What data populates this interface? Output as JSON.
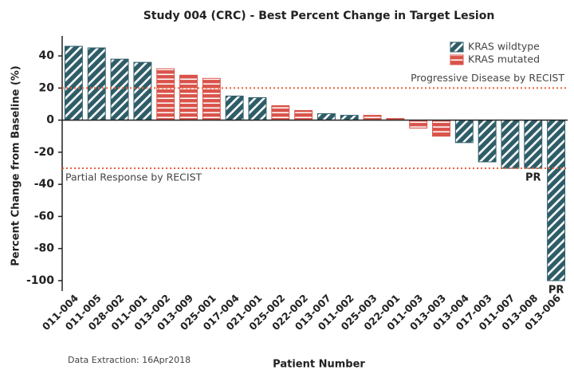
{
  "chart_data": {
    "type": "bar",
    "title": "Study 004 (CRC) - Best Percent Change in Target Lesion",
    "x_label": "Patient Number",
    "y_label": "Percent Change from Baseline (%)",
    "footnote": "Data Extraction: 16Apr2018",
    "categories": [
      "011-004",
      "011-005",
      "028-002",
      "011-001",
      "013-002",
      "013-009",
      "025-001",
      "017-004",
      "021-001",
      "025-002",
      "022-002",
      "013-007",
      "011-002",
      "025-003",
      "022-001",
      "011-003",
      "013-003",
      "013-004",
      "017-003",
      "011-007",
      "013-008",
      "013-006"
    ],
    "series": [
      {
        "name": "KRAS wildtype",
        "color": "#2e5d68",
        "pattern": "diagonal",
        "values": [
          46,
          45,
          38,
          36,
          null,
          null,
          null,
          15,
          14,
          null,
          null,
          4,
          3,
          null,
          null,
          null,
          null,
          -14,
          -26,
          -30,
          -30,
          -100
        ]
      },
      {
        "name": "KRAS mutated",
        "color": "#d9534a",
        "pattern": "horizontal",
        "values": [
          null,
          null,
          null,
          null,
          32,
          28,
          26,
          null,
          null,
          9,
          6,
          null,
          null,
          3,
          1,
          -5,
          -10,
          null,
          null,
          null,
          null,
          null
        ]
      }
    ],
    "reference_lines": [
      {
        "value": 20,
        "label": "Progressive Disease by RECIST",
        "color": "#e8603c"
      },
      {
        "value": -30,
        "label": "Partial Response by RECIST",
        "color": "#e8603c"
      }
    ],
    "annotations": [
      {
        "text": "PR",
        "category": "013-008"
      },
      {
        "text": "PR",
        "category": "013-006"
      }
    ],
    "ylim": [
      -105,
      50
    ],
    "yticks": [
      40,
      20,
      0,
      -20,
      -40,
      -60,
      -80,
      -100
    ],
    "legend": "upper right"
  }
}
